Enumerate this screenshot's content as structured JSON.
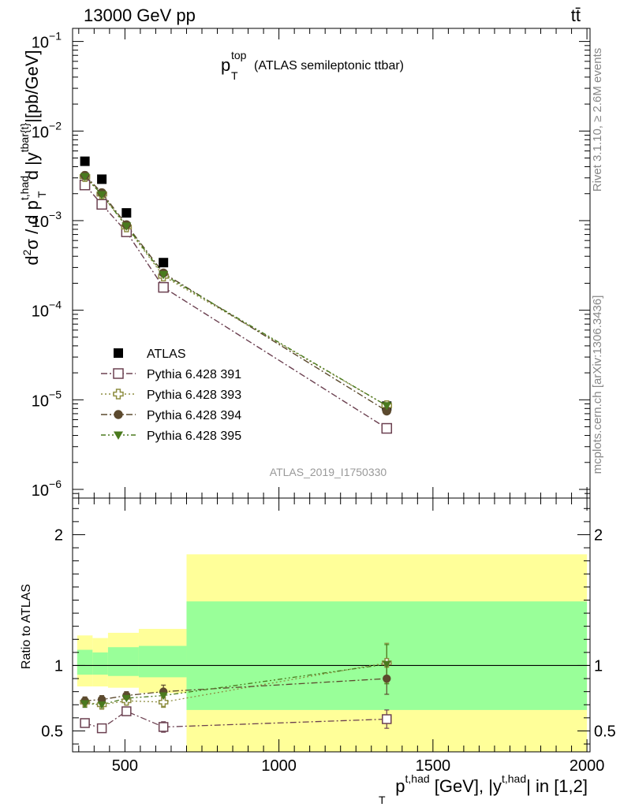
{
  "header": {
    "left": "13000 GeV pp",
    "right": "tt̄"
  },
  "side_labels": {
    "rivet": "Rivet 3.1.10, ≥ 2.6M events",
    "mcplots": "mcplots.cern.ch [arXiv:1306.3436]"
  },
  "analysis_id": "ATLAS_2019_I1750330",
  "chart_data": [
    {
      "type": "scatter",
      "title": "p_T^top (ATLAS semileptonic ttbar)",
      "title_main": "p",
      "title_sub": "T",
      "title_sup": "top",
      "title_rest": "(ATLAS semileptonic ttbar)",
      "ylabel": "d²σ / d p_T^{t,had} d |y^{tbar{t}}|[pb/GeV]",
      "yscale": "log",
      "ylim": [
        8e-07,
        0.14
      ],
      "xlim": [
        330,
        2010
      ],
      "y_tick_labels": [
        {
          "base": "10",
          "exp": "−1",
          "value": 0.1
        },
        {
          "base": "10",
          "exp": "−2",
          "value": 0.01
        },
        {
          "base": "10",
          "exp": "−3",
          "value": 0.001
        },
        {
          "base": "10",
          "exp": "−4",
          "value": 0.0001
        },
        {
          "base": "10",
          "exp": "−5",
          "value": 1e-05
        },
        {
          "base": "10",
          "exp": "−6",
          "value": 1e-06
        }
      ],
      "legend_position": "lower-left",
      "series": [
        {
          "name": "ATLAS",
          "color": "#000000",
          "marker": "filled-square",
          "line": "none",
          "x": [
            370,
            425,
            505,
            625,
            1350
          ],
          "y": [
            0.0046,
            0.0029,
            0.00122,
            0.00034,
            8.5e-06
          ]
        },
        {
          "name": "Pythia 6.428 391",
          "color": "#6b4050",
          "marker": "open-square",
          "line": "dash-dot",
          "x": [
            370,
            425,
            505,
            625,
            1350
          ],
          "y": [
            0.0025,
            0.00152,
            0.00075,
            0.00018,
            4.8e-06
          ]
        },
        {
          "name": "Pythia 6.428 393",
          "color": "#8d8d40",
          "marker": "open-cross",
          "line": "dotted",
          "x": [
            370,
            425,
            505,
            625,
            1350
          ],
          "y": [
            0.0031,
            0.00198,
            0.00085,
            0.00024,
            8.6e-06
          ]
        },
        {
          "name": "Pythia 6.428 394",
          "color": "#5c4a2e",
          "marker": "filled-circle",
          "line": "dash-dot",
          "x": [
            370,
            425,
            505,
            625,
            1350
          ],
          "y": [
            0.0032,
            0.00205,
            0.0009,
            0.00026,
            7.5e-06
          ]
        },
        {
          "name": "Pythia 6.428 395",
          "color": "#4a7a1e",
          "marker": "filled-triangle-down",
          "line": "dash-dot-dot",
          "x": [
            370,
            425,
            505,
            625,
            1350
          ],
          "y": [
            0.0031,
            0.00195,
            0.00087,
            0.00025,
            8.6e-06
          ]
        }
      ]
    },
    {
      "type": "scatter",
      "ylabel": "Ratio to ATLAS",
      "xlabel": "p_T^{t,had} [GeV], |y^{t,had}| in [1,2]",
      "xlabel_parts": {
        "p": "p",
        "sub_T": "T",
        "sup1": "t,had",
        "mid": " [GeV], |y",
        "sup2": "t,had",
        "end": "| in [1,2]"
      },
      "xlim": [
        330,
        2010
      ],
      "ylim": [
        0.34,
        2.28
      ],
      "x_ticks": [
        500,
        1000,
        1500,
        2000
      ],
      "x_tick_labels": [
        "500",
        "1000",
        "1500",
        "2000"
      ],
      "y_ticks": [
        0.5,
        1,
        2
      ],
      "y_tick_labels": [
        "0.5",
        "1",
        "2"
      ],
      "reference_line": 1,
      "bands": [
        {
          "x0": 345,
          "x1": 395,
          "yellow": [
            0.84,
            1.23
          ],
          "green": [
            0.93,
            1.12
          ]
        },
        {
          "x0": 395,
          "x1": 445,
          "yellow": [
            0.84,
            1.21
          ],
          "green": [
            0.93,
            1.1
          ]
        },
        {
          "x0": 445,
          "x1": 545,
          "yellow": [
            0.83,
            1.25
          ],
          "green": [
            0.92,
            1.14
          ]
        },
        {
          "x0": 545,
          "x1": 700,
          "yellow": [
            0.79,
            1.28
          ],
          "green": [
            0.91,
            1.15
          ]
        },
        {
          "x0": 700,
          "x1": 2000,
          "yellow": [
            0.34,
            1.85
          ],
          "green": [
            0.66,
            1.49
          ]
        }
      ],
      "series": [
        {
          "name": "Pythia 6.428 391",
          "color": "#6b4050",
          "marker": "open-square",
          "line": "dash-dot",
          "x": [
            370,
            425,
            505,
            625,
            1350
          ],
          "y": [
            0.56,
            0.52,
            0.65,
            0.53,
            0.59
          ],
          "err": [
            0.02,
            0.02,
            0.03,
            0.04,
            0.07
          ]
        },
        {
          "name": "Pythia 6.428 393",
          "color": "#8d8d40",
          "marker": "open-cross",
          "line": "dotted",
          "x": [
            370,
            425,
            505,
            625,
            1350
          ],
          "y": [
            0.72,
            0.7,
            0.73,
            0.72,
            1.02
          ],
          "err": [
            0.03,
            0.03,
            0.03,
            0.04,
            0.15
          ]
        },
        {
          "name": "Pythia 6.428 394",
          "color": "#5c4a2e",
          "marker": "filled-circle",
          "line": "dash-dot",
          "x": [
            370,
            425,
            505,
            625,
            1350
          ],
          "y": [
            0.73,
            0.74,
            0.77,
            0.8,
            0.9
          ],
          "err": [
            0.03,
            0.03,
            0.03,
            0.05,
            0.12
          ]
        },
        {
          "name": "Pythia 6.428 395",
          "color": "#4a7a1e",
          "marker": "filled-triangle-down",
          "line": "dash-dot-dot",
          "x": [
            370,
            425,
            505,
            625,
            1350
          ],
          "y": [
            0.71,
            0.7,
            0.75,
            0.77,
            1.01
          ],
          "err": [
            0.03,
            0.03,
            0.03,
            0.04,
            0.15
          ]
        }
      ]
    }
  ]
}
